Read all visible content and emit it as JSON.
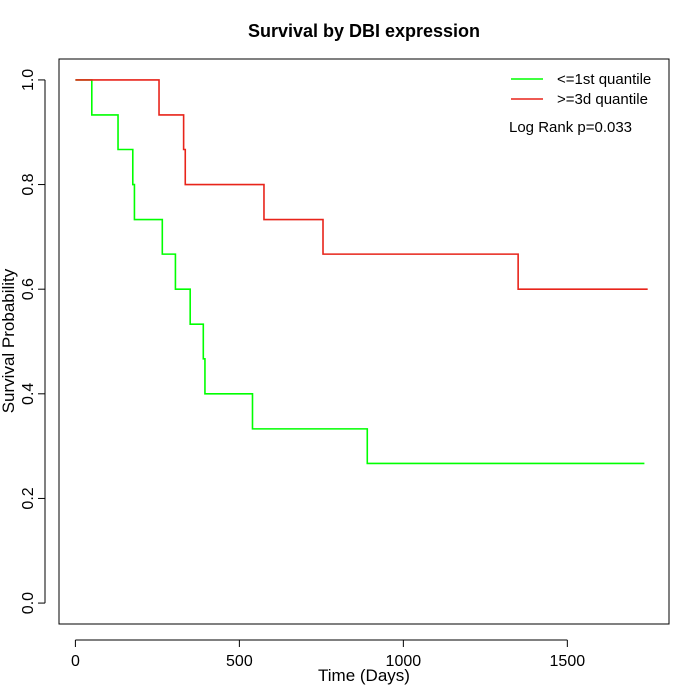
{
  "chart_data": {
    "type": "line",
    "title": "Survival by DBI expression",
    "xlabel": "Time (Days)",
    "ylabel": "Survival Probability",
    "xlim": [
      -50,
      1810
    ],
    "ylim": [
      -0.04,
      1.04
    ],
    "x_ticks": [
      0,
      500,
      1000,
      1500
    ],
    "y_ticks": [
      0.0,
      0.2,
      0.4,
      0.6,
      0.8,
      1.0
    ],
    "x_tick_labels": [
      "0",
      "500",
      "1000",
      "1500"
    ],
    "y_tick_labels": [
      "0.0",
      "0.2",
      "0.4",
      "0.6",
      "0.8",
      "1.0"
    ],
    "grid": false,
    "legend_position": "top-right",
    "annotation": "Log Rank p=0.033",
    "series": [
      {
        "name": "<=1st quantile",
        "color": "#00ff00",
        "step": true,
        "x": [
          0,
          50,
          130,
          175,
          180,
          265,
          305,
          350,
          390,
          395,
          540,
          890,
          1735
        ],
        "y": [
          1.0,
          0.933,
          0.867,
          0.8,
          0.733,
          0.667,
          0.6,
          0.533,
          0.467,
          0.4,
          0.333,
          0.267,
          0.267
        ]
      },
      {
        "name": ">=3d quantile",
        "color": "#e8241a",
        "step": true,
        "x": [
          0,
          255,
          330,
          335,
          575,
          755,
          1350,
          1745
        ],
        "y": [
          1.0,
          0.933,
          0.867,
          0.8,
          0.733,
          0.667,
          0.6,
          0.6
        ]
      }
    ]
  }
}
